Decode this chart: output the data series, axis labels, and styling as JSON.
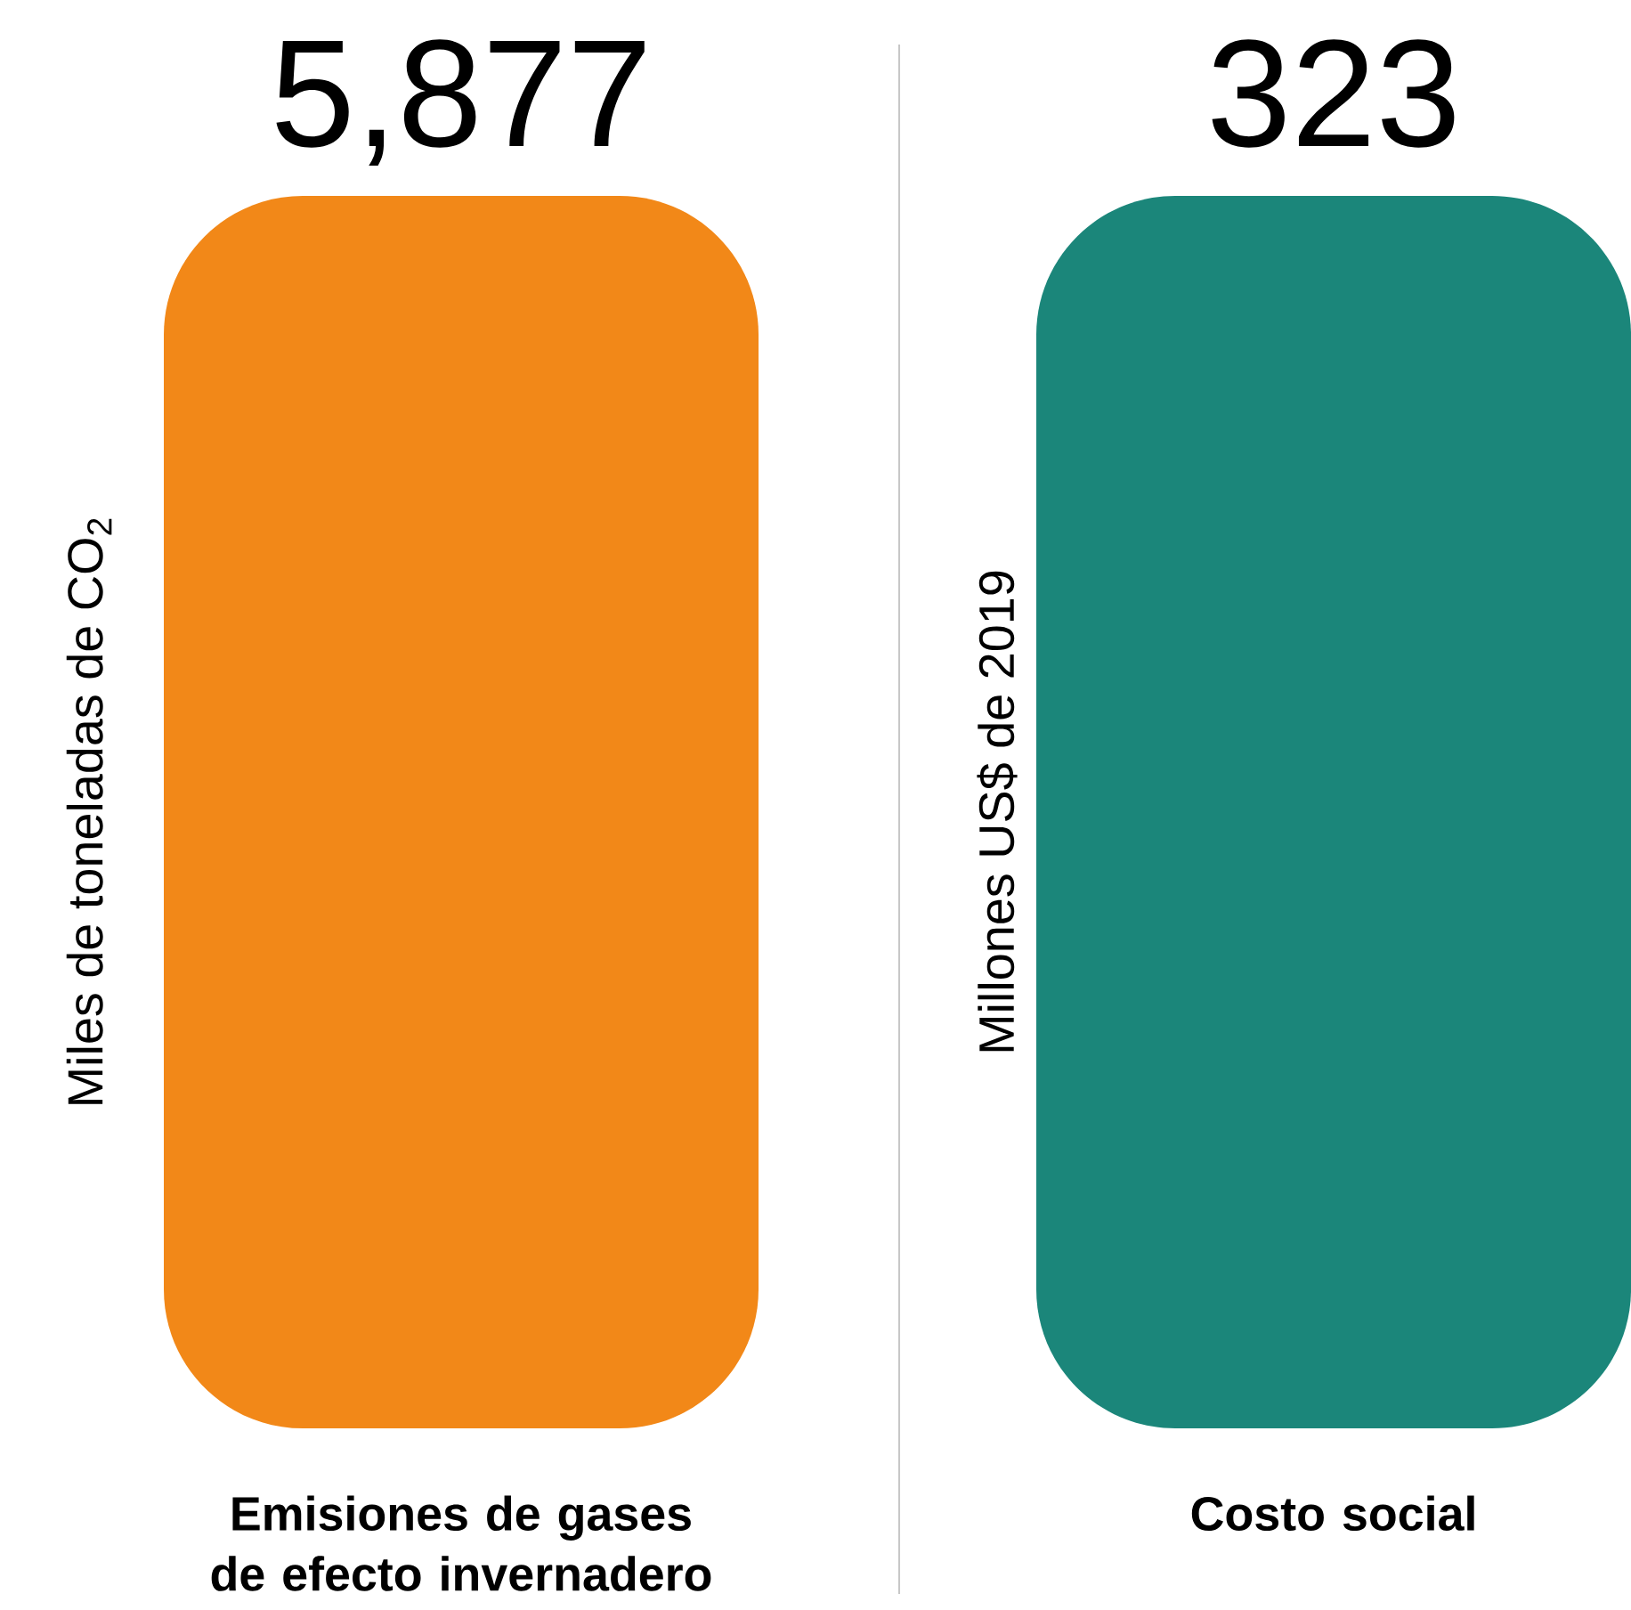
{
  "chart_data": [
    {
      "type": "other",
      "categories": [
        "Emisiones de gases de efecto invernadero"
      ],
      "values": [
        5877
      ],
      "value_labels": [
        "5,877"
      ],
      "color": "#f28818",
      "ylabel": "Miles de toneladas de CO$_{2}$"
    },
    {
      "type": "other",
      "categories": [
        "Costo social"
      ],
      "values": [
        323
      ],
      "value_labels": [
        "323"
      ],
      "color": "#1b867a",
      "ylabel": "Millones US$ de 2019"
    }
  ]
}
